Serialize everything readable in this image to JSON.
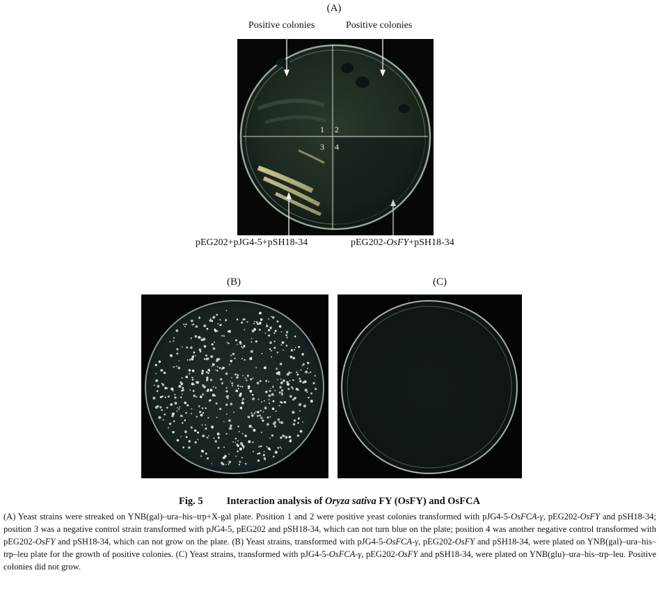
{
  "panel_a": {
    "letter": "(A)",
    "label_top_left": "Positive colonies",
    "label_top_right": "Positive colonies",
    "position_labels": [
      "1",
      "2",
      "3",
      "4"
    ],
    "label_bottom_left": "pEG202+pJG4-5+pSH18-34",
    "label_bottom_right_prefix": "pEG202-",
    "label_bottom_right_gene": "OsFY",
    "label_bottom_right_suffix": "+pSH18-34"
  },
  "panel_b": {
    "letter": "(B)"
  },
  "panel_c": {
    "letter": "(C)"
  },
  "caption": {
    "fig_number": "Fig. 5",
    "title_prefix": "Interaction analysis of ",
    "title_species": "Oryza sativa",
    "title_suffix": " FY (OsFY) and OsFCA",
    "s1": "(A) Yeast strains were streaked on YNB(gal)–ura–his–trp+X-gal plate. Position 1 and 2 were positive yeast colonies transformed with pJG4-5-",
    "g1": "OsFCA-γ",
    "s2": ", pEG202-",
    "g2": "OsFY",
    "s3": " and pSH18-34; position 3 was a negative control strain transformed with pJG4-5, pEG202 and pSH18-34, which can not turn blue on the plate; position 4 was another negative control transformed with pEG202-",
    "g3": "OsFY",
    "s4": " and pSH18-34, which can not grow on the plate. (B) Yeast strains, transformed with pJG4-5-",
    "g4": "OsFCA-γ",
    "s5": ", pEG202-",
    "g5": "OsFY",
    "s6": " and pSH18-34, were plated on YNB(gal)–ura–his–trp–leu plate for the growth of positive colonies. (C) Yeast strains, transformed with pJG4-5-",
    "g6": "OsFCA-γ",
    "s7": ", pEG202-",
    "g7": "OsFY",
    "s8": " and pSH18-34, were plated on YNB(glu)–ura–his–trp–leu. Positive colonies did not grow."
  }
}
